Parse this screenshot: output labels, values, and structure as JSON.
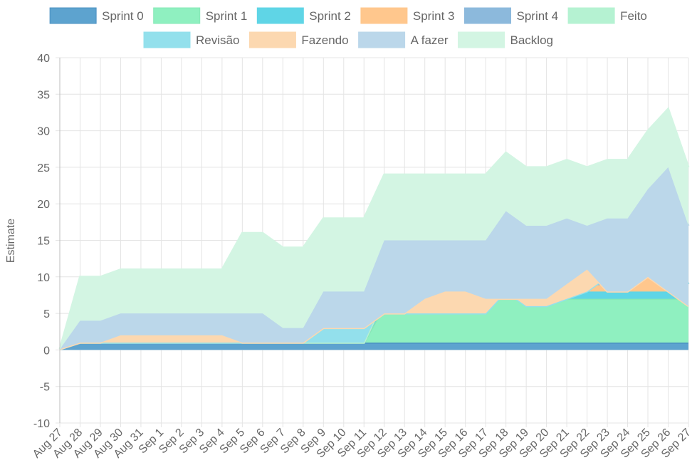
{
  "chart_data": {
    "type": "area",
    "stacked": true,
    "ylabel": "Estimate",
    "xlabel": "",
    "ylim": [
      -10,
      40
    ],
    "yticks": [
      -10,
      -5,
      0,
      5,
      10,
      15,
      20,
      25,
      30,
      35,
      40
    ],
    "grid": true,
    "legend_position": "top",
    "categories": [
      "Aug 27",
      "Aug 28",
      "Aug 29",
      "Aug 30",
      "Aug 31",
      "Sep 1",
      "Sep 2",
      "Sep 3",
      "Sep 4",
      "Sep 5",
      "Sep 6",
      "Sep 7",
      "Sep 8",
      "Sep 9",
      "Sep 10",
      "Sep 11",
      "Sep 12",
      "Sep 13",
      "Sep 14",
      "Sep 15",
      "Sep 16",
      "Sep 17",
      "Sep 18",
      "Sep 19",
      "Sep 20",
      "Sep 21",
      "Sep 22",
      "Sep 23",
      "Sep 24",
      "Sep 25",
      "Sep 26",
      "Sep 27"
    ],
    "series": [
      {
        "name": "Sprint 0",
        "fill": "#5da3cf",
        "stroke": "#4a90c2",
        "values": [
          0.1,
          1,
          1,
          1,
          1,
          1,
          1,
          1,
          1,
          1,
          1,
          1,
          1,
          1,
          1,
          1,
          1,
          1,
          1,
          1,
          1,
          1,
          1,
          1,
          1,
          1,
          1,
          1,
          1,
          1,
          1,
          1
        ]
      },
      {
        "name": "Sprint 1",
        "fill": "#8ff0c0",
        "stroke": "#86e8b6",
        "values": [
          0,
          0,
          0,
          0,
          0,
          0,
          0,
          0,
          0,
          0,
          0,
          0,
          0,
          0,
          0,
          0,
          5,
          5,
          5,
          5,
          5,
          6,
          6,
          6,
          6,
          6,
          6,
          6,
          6,
          6,
          6,
          6
        ]
      },
      {
        "name": "Sprint 2",
        "fill": "#5fd5e6",
        "stroke": "#5fd5e6",
        "values": [
          0,
          0,
          0,
          0,
          0,
          0,
          0,
          0,
          0,
          0,
          0,
          0,
          0,
          0,
          0,
          0,
          1,
          1,
          1,
          1,
          1,
          1,
          4,
          1,
          1,
          1,
          1,
          1,
          1,
          1,
          1,
          1
        ]
      },
      {
        "name": "Sprint 3",
        "fill": "#ffc78d",
        "stroke": "#ffc78d",
        "values": [
          0,
          0,
          0,
          0,
          0,
          0,
          0,
          0,
          0,
          0,
          0,
          0,
          0,
          0,
          0,
          0,
          0,
          0,
          0,
          0,
          0,
          0,
          0,
          1,
          1,
          1,
          1,
          1,
          1,
          7,
          6,
          1
        ]
      },
      {
        "name": "Sprint 4",
        "fill": "#8cb9dc",
        "stroke": "#8cb9dc",
        "values": [
          0,
          0,
          0,
          0,
          0,
          0,
          0,
          0,
          0,
          0,
          0,
          0,
          0,
          0,
          0,
          0,
          0,
          0,
          0,
          0,
          0,
          0,
          0,
          0,
          0,
          0,
          0,
          0,
          0,
          0,
          0,
          0
        ]
      },
      {
        "name": "Feito",
        "fill": "#b5f2d2",
        "stroke": "#b5f2d2",
        "values": [
          0,
          0,
          0,
          0,
          0,
          0,
          0,
          0,
          0,
          0,
          0,
          0,
          0,
          0,
          0,
          0,
          0,
          0,
          0,
          0,
          0,
          0,
          0,
          0,
          0,
          1,
          1,
          1,
          1,
          0,
          0,
          0
        ]
      },
      {
        "name": "Revisão",
        "fill": "#93e0ec",
        "stroke": "#93e0ec",
        "values": [
          0,
          0,
          0,
          0,
          0,
          0,
          0,
          0,
          0,
          0,
          0,
          0,
          0,
          2,
          2,
          2,
          -2,
          -2,
          -2,
          -2,
          -2,
          -3,
          -3,
          -3,
          -3,
          -3,
          -2,
          0,
          0,
          0,
          0,
          0
        ]
      },
      {
        "name": "Fazendo",
        "fill": "#fcd8b0",
        "stroke": "#fcd8b0",
        "values": [
          0,
          0,
          0,
          1,
          1,
          1,
          1,
          1,
          1,
          0,
          0,
          0,
          0,
          0,
          0,
          0,
          0,
          0,
          2,
          3,
          3,
          2,
          -1,
          1,
          1,
          2,
          3,
          -2,
          -2,
          -5,
          -6,
          -3
        ]
      },
      {
        "name": "A fazer",
        "fill": "#bbd7ea",
        "stroke": "#bbd7ea",
        "values": [
          0,
          3,
          3,
          3,
          3,
          3,
          3,
          3,
          3,
          4,
          4,
          2,
          2,
          5,
          5,
          5,
          10,
          10,
          8,
          7,
          7,
          8,
          12,
          10,
          10,
          9,
          6,
          10,
          10,
          12,
          17,
          11
        ]
      },
      {
        "name": "Backlog",
        "fill": "#d3f5e3",
        "stroke": "#d3f5e3",
        "values": [
          0,
          6,
          6,
          6,
          6,
          6,
          6,
          6,
          6,
          11,
          11,
          11,
          11,
          10,
          10,
          10,
          9,
          9,
          9,
          9,
          9,
          9,
          8,
          8,
          8,
          8,
          8,
          8,
          8,
          8,
          8,
          8
        ]
      }
    ]
  }
}
